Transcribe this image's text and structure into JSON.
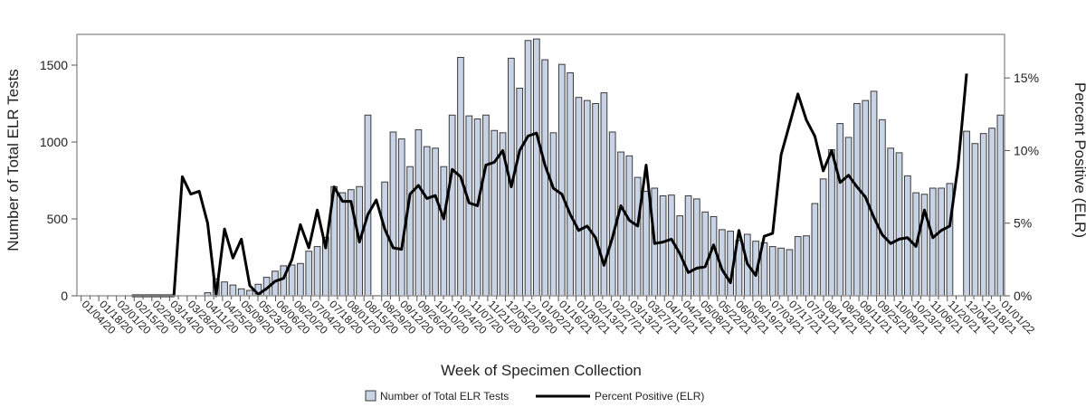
{
  "chart_data": {
    "type": "bar",
    "xlabel": "Week of Specimen Collection",
    "ylabel_left": "Number of Total ELR Tests",
    "ylabel_right": "Percent Positive (ELR)",
    "ylim_left": [
      0,
      1700
    ],
    "ylim_right": [
      0,
      18
    ],
    "left_ticks": [
      "0",
      "500",
      "1000",
      "1500"
    ],
    "right_ticks": [
      "0%",
      "5%",
      "10%",
      "15%"
    ],
    "x_tick_labels": [
      "01/04/20",
      "01/18/20",
      "02/01/20",
      "02/15/20",
      "02/29/20",
      "03/14/20",
      "03/28/20",
      "04/11/20",
      "04/25/20",
      "05/09/20",
      "05/23/20",
      "06/06/20",
      "06/20/20",
      "07/04/20",
      "07/18/20",
      "08/01/20",
      "08/15/20",
      "08/29/20",
      "09/12/20",
      "09/26/20",
      "10/10/20",
      "10/24/20",
      "11/07/20",
      "11/21/20",
      "12/05/20",
      "12/19/20",
      "01/02/21",
      "01/16/21",
      "01/30/21",
      "02/13/21",
      "02/27/21",
      "03/13/21",
      "03/27/21",
      "04/10/21",
      "04/24/21",
      "05/08/21",
      "05/22/21",
      "06/05/21",
      "06/19/21",
      "07/03/21",
      "07/17/21",
      "07/31/21",
      "08/14/21",
      "08/28/21",
      "09/11/21",
      "09/25/21",
      "10/09/21",
      "10/23/21",
      "11/06/21",
      "11/20/21",
      "12/04/21",
      "12/18/21",
      "01/01/22"
    ],
    "grid": false,
    "legend_position": "bottom",
    "colors": {
      "bar_fill": "#c9d3e6",
      "bar_stroke": "#3a3a3a",
      "line": "#000000",
      "frame": "#9a9a9a"
    },
    "series": [
      {
        "name": "Number of Total ELR Tests",
        "type": "bar",
        "axis": "left",
        "values": [
          0,
          0,
          0,
          0,
          0,
          0,
          0,
          0,
          0,
          0,
          0,
          0,
          0,
          0,
          0,
          20,
          110,
          90,
          70,
          45,
          35,
          75,
          120,
          160,
          195,
          200,
          210,
          290,
          320,
          380,
          710,
          670,
          690,
          710,
          1175,
          1,
          740,
          1065,
          1020,
          840,
          1080,
          970,
          960,
          840,
          1175,
          1550,
          1170,
          1150,
          1175,
          1075,
          1060,
          1545,
          1350,
          1660,
          1670,
          1535,
          1060,
          1505,
          1450,
          1290,
          1270,
          1250,
          1320,
          1065,
          935,
          910,
          770,
          680,
          700,
          650,
          655,
          520,
          650,
          630,
          545,
          515,
          430,
          420,
          360,
          400,
          355,
          345,
          320,
          310,
          300,
          385,
          390,
          600,
          760,
          950,
          1120,
          1030,
          1250,
          1270,
          1330,
          1145,
          960,
          930,
          780,
          670,
          660,
          700,
          700,
          730,
          0,
          1070,
          990,
          1055,
          1090,
          1175
        ]
      },
      {
        "name": "Percent Positive (ELR)",
        "type": "line",
        "axis": "right",
        "values": [
          null,
          null,
          null,
          null,
          null,
          null,
          0,
          0,
          0,
          0,
          0,
          0,
          8.2,
          7,
          7.2,
          5,
          0,
          4.6,
          2.6,
          3.9,
          0.7,
          0.1,
          0.5,
          1.0,
          1.2,
          2.5,
          4.9,
          3.3,
          5.9,
          3.3,
          7.5,
          6.5,
          6.5,
          3.7,
          5.6,
          6.6,
          4.6,
          3.3,
          3.2,
          7.0,
          7.6,
          6.7,
          6.9,
          5.3,
          8.7,
          8.2,
          6.4,
          6.2,
          9.0,
          9.2,
          10.0,
          7.5,
          10.0,
          11.0,
          11.2,
          9.0,
          7.4,
          7.0,
          5.6,
          4.5,
          4.8,
          4.0,
          2.1,
          4.0,
          6.2,
          5.2,
          4.8,
          9.0,
          3.6,
          3.7,
          3.9,
          2.9,
          1.6,
          1.9,
          2.0,
          3.5,
          1.8,
          0.9,
          4.5,
          2.2,
          1.4,
          4.1,
          4.3,
          9.7,
          11.8,
          13.9,
          12.1,
          11.0,
          8.6,
          10.0,
          7.8,
          8.3,
          7.5,
          6.8,
          5.4,
          4.2,
          3.6,
          3.9,
          4.0,
          3.4,
          5.9,
          4.0,
          4.5,
          4.8,
          9.0,
          15.3
        ]
      }
    ]
  }
}
